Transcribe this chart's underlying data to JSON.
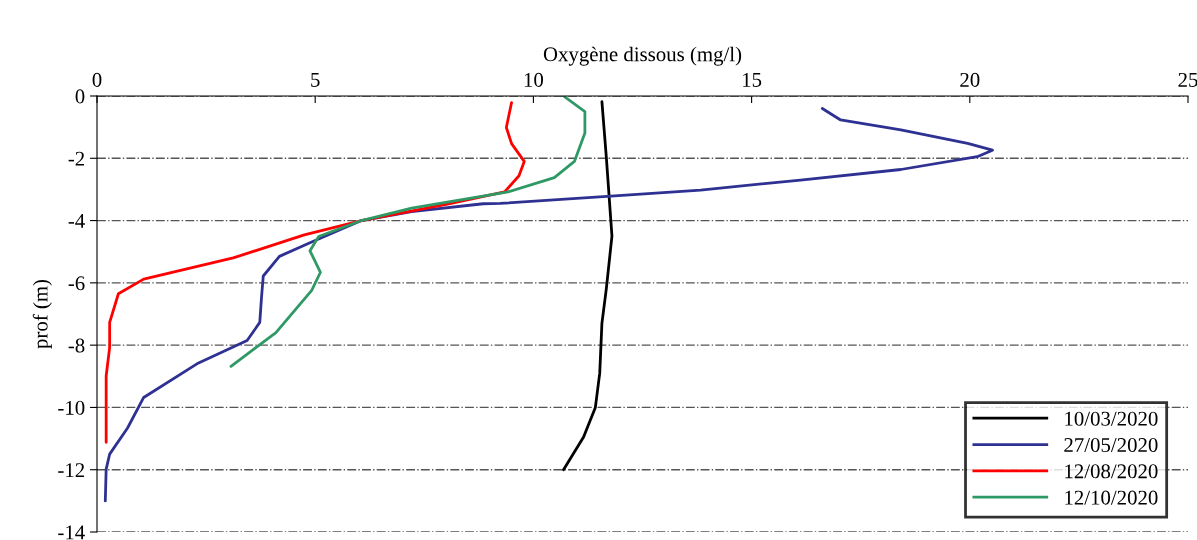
{
  "chart_data": {
    "type": "line",
    "xlabel": "Oxygène dissous (mg/l)",
    "ylabel": "prof (m)",
    "xlim": [
      0,
      25
    ],
    "xticks": [
      0,
      5,
      10,
      15,
      20,
      25
    ],
    "ylim": [
      -14,
      0
    ],
    "yticks": [
      -14,
      -12,
      -10,
      -8,
      -6,
      -4,
      -2,
      0
    ],
    "grid": "y",
    "legend": "bottom right",
    "line_style": "solid",
    "marker": "none",
    "series": [
      {
        "name": "10/03/2020",
        "color": "#000000",
        "x": [
          11.57,
          11.67,
          11.8,
          11.67,
          11.57,
          11.52,
          11.42,
          11.15,
          10.69
        ],
        "values": [
          -0.18,
          -1.95,
          -4.5,
          -6.2,
          -7.3,
          -8.9,
          -10.0,
          -10.95,
          -12.0
        ]
      },
      {
        "name": "27/05/2020",
        "color": "#2e3192",
        "x": [
          16.62,
          17.04,
          18.42,
          19.95,
          20.52,
          20.17,
          18.42,
          16.12,
          13.83,
          11.69,
          9.24,
          8.85,
          7.21,
          6.06,
          4.92,
          4.18,
          3.81,
          3.77,
          3.73,
          3.44,
          2.29,
          1.07,
          0.7,
          0.29,
          0.21,
          0.19
        ],
        "values": [
          -0.4,
          -0.77,
          -1.09,
          -1.52,
          -1.74,
          -1.95,
          -2.36,
          -2.7,
          -3.02,
          -3.22,
          -3.45,
          -3.46,
          -3.71,
          -4.0,
          -4.69,
          -5.15,
          -5.78,
          -6.46,
          -7.27,
          -7.85,
          -8.6,
          -9.68,
          -10.66,
          -11.5,
          -11.98,
          -13.0
        ]
      },
      {
        "name": "12/08/2020",
        "color": "#ff0000",
        "x": [
          9.5,
          9.38,
          9.5,
          9.79,
          9.67,
          9.34,
          8.03,
          6.06,
          4.75,
          3.12,
          1.07,
          0.49,
          0.29,
          0.29,
          0.21,
          0.21
        ],
        "values": [
          -0.21,
          -1.01,
          -1.53,
          -2.1,
          -2.56,
          -3.08,
          -3.47,
          -4.0,
          -4.46,
          -5.2,
          -5.88,
          -6.35,
          -7.27,
          -8.07,
          -8.99,
          -11.12
        ]
      },
      {
        "name": "12/10/2020",
        "color": "#2e9964",
        "x": [
          10.69,
          11.18,
          11.18,
          10.94,
          10.48,
          9.42,
          7.21,
          6.06,
          5.08,
          4.88,
          5.12,
          4.92,
          4.1,
          3.07
        ],
        "values": [
          0.0,
          -0.5,
          -1.19,
          -2.1,
          -2.62,
          -3.08,
          -3.6,
          -4.0,
          -4.51,
          -4.97,
          -5.66,
          -6.24,
          -7.6,
          -8.68
        ]
      }
    ]
  }
}
